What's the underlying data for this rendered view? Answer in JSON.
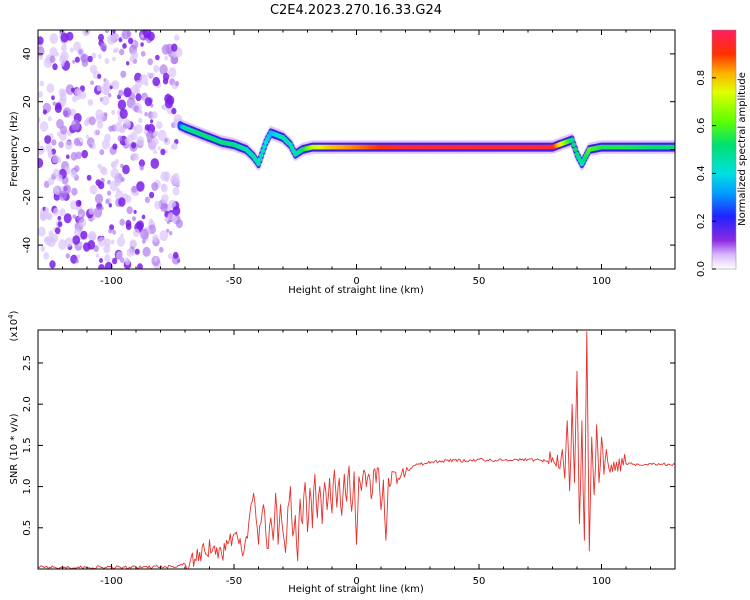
{
  "title": "C2E4.2023.270.16.33.G24",
  "colorbar": {
    "label": "Normalized spectral amplitude",
    "ticks": [
      "0.0",
      "0.2",
      "0.4",
      "0.6",
      "0.8"
    ],
    "tick_values": [
      0.0,
      0.2,
      0.4,
      0.6,
      0.8
    ],
    "range": [
      0,
      1
    ]
  },
  "chart_data": [
    {
      "type": "heatmap",
      "title": "",
      "xlabel": "Height of straight line (km)",
      "ylabel": "Frequency (Hz)",
      "xlim": [
        -130,
        130
      ],
      "ylim": [
        -50,
        50
      ],
      "xticks": [
        "-100",
        "-50",
        "0",
        "50",
        "100"
      ],
      "xtick_values": [
        -100,
        -50,
        0,
        50,
        100
      ],
      "yticks": [
        "-40",
        "-20",
        "0",
        "20",
        "40"
      ],
      "ytick_values": [
        -40,
        -20,
        0,
        20,
        40
      ],
      "noise_region": {
        "x_from": -130,
        "x_to": -72,
        "amplitude_range": [
          0.0,
          0.1
        ]
      },
      "ridge_points": [
        {
          "x": -72,
          "f": 10,
          "a": 0.25
        },
        {
          "x": -70,
          "f": 9,
          "a": 0.45
        },
        {
          "x": -65,
          "f": 7,
          "a": 0.5
        },
        {
          "x": -60,
          "f": 5,
          "a": 0.5
        },
        {
          "x": -55,
          "f": 3,
          "a": 0.5
        },
        {
          "x": -50,
          "f": 2,
          "a": 0.5
        },
        {
          "x": -45,
          "f": 0,
          "a": 0.45
        },
        {
          "x": -42,
          "f": -3,
          "a": 0.45
        },
        {
          "x": -40,
          "f": -6,
          "a": 0.45
        },
        {
          "x": -37,
          "f": 3,
          "a": 0.4
        },
        {
          "x": -35,
          "f": 7,
          "a": 0.35
        },
        {
          "x": -30,
          "f": 5,
          "a": 0.45
        },
        {
          "x": -27,
          "f": 2,
          "a": 0.45
        },
        {
          "x": -25,
          "f": -2,
          "a": 0.45
        },
        {
          "x": -22,
          "f": 0,
          "a": 0.5
        },
        {
          "x": -18,
          "f": 1,
          "a": 0.7
        },
        {
          "x": -10,
          "f": 1,
          "a": 0.8
        },
        {
          "x": 0,
          "f": 1,
          "a": 0.85
        },
        {
          "x": 20,
          "f": 1,
          "a": 0.95
        },
        {
          "x": 50,
          "f": 1,
          "a": 0.95
        },
        {
          "x": 80,
          "f": 1,
          "a": 0.95
        },
        {
          "x": 88,
          "f": 4,
          "a": 0.5
        },
        {
          "x": 90,
          "f": -2,
          "a": 0.5
        },
        {
          "x": 92,
          "f": -6,
          "a": 0.45
        },
        {
          "x": 95,
          "f": 0,
          "a": 0.6
        },
        {
          "x": 100,
          "f": 1,
          "a": 0.55
        },
        {
          "x": 110,
          "f": 1,
          "a": 0.55
        },
        {
          "x": 130,
          "f": 1,
          "a": 0.5
        }
      ]
    },
    {
      "type": "line",
      "title": "",
      "xlabel": "Height of straight line (km)",
      "ylabel": "SNR (10 * v/v)",
      "y_scale_label": "(x10^4)",
      "xlim": [
        -130,
        130
      ],
      "ylim": [
        0,
        2.9
      ],
      "xticks": [
        "-100",
        "-50",
        "0",
        "50",
        "100"
      ],
      "xtick_values": [
        -100,
        -50,
        0,
        50,
        100
      ],
      "yticks": [
        "0.5",
        "1.0",
        "1.5",
        "2.0",
        "2.5"
      ],
      "ytick_values": [
        0.5,
        1.0,
        1.5,
        2.0,
        2.5
      ],
      "series": [
        {
          "color": "#e8302c",
          "x": [
            -130,
            -110,
            -90,
            -75,
            -70,
            -66,
            -62,
            -58,
            -55,
            -52,
            -49,
            -46,
            -44,
            -42,
            -40,
            -39,
            -38,
            -37,
            -36,
            -35,
            -34,
            -33,
            -32,
            -31,
            -30,
            -29,
            -28,
            -27,
            -26,
            -25,
            -24,
            -23,
            -22,
            -21,
            -20,
            -19,
            -18,
            -17,
            -16,
            -15,
            -14,
            -13,
            -12,
            -11,
            -10,
            -9,
            -8,
            -7,
            -6,
            -5,
            -4,
            -3,
            -2,
            -1,
            0,
            1,
            2,
            3,
            4,
            5,
            6,
            7,
            8,
            9,
            10,
            11,
            12,
            13,
            14,
            15,
            17,
            19,
            21,
            23,
            25,
            28,
            31,
            35,
            40,
            45,
            50,
            55,
            60,
            65,
            70,
            75,
            78,
            80,
            81,
            82,
            83,
            84,
            85,
            86,
            87,
            88,
            89,
            90,
            91,
            92,
            93,
            94,
            95,
            96,
            97,
            98,
            99,
            100,
            101,
            102,
            103,
            105,
            110,
            115,
            120,
            125,
            130
          ],
          "y": [
            0.02,
            0.02,
            0.02,
            0.03,
            0.06,
            0.12,
            0.22,
            0.28,
            0.18,
            0.34,
            0.45,
            0.2,
            0.55,
            0.92,
            0.3,
            0.55,
            0.78,
            0.42,
            0.25,
            0.62,
            0.35,
            0.92,
            0.3,
            0.78,
            0.45,
            0.2,
            0.75,
            1.0,
            0.4,
            0.65,
            0.1,
            0.85,
            0.55,
            1.05,
            0.45,
            0.98,
            0.5,
            1.15,
            0.62,
            1.0,
            0.55,
            1.05,
            0.72,
            1.1,
            0.68,
            1.2,
            0.75,
            1.1,
            0.65,
            1.15,
            0.82,
            1.25,
            0.7,
            1.18,
            0.3,
            1.12,
            0.95,
            1.2,
            1.0,
            1.15,
            0.85,
            1.2,
            1.05,
            1.22,
            0.72,
            1.08,
            0.35,
            1.1,
            1.02,
            1.18,
            1.1,
            1.22,
            1.2,
            1.25,
            1.27,
            1.28,
            1.3,
            1.31,
            1.32,
            1.31,
            1.33,
            1.32,
            1.32,
            1.33,
            1.33,
            1.32,
            1.31,
            1.35,
            1.28,
            1.38,
            1.22,
            1.45,
            1.1,
            1.8,
            0.95,
            2.0,
            1.05,
            2.4,
            0.55,
            1.8,
            0.35,
            2.88,
            0.22,
            1.6,
            0.9,
            1.75,
            1.05,
            1.6,
            1.15,
            1.45,
            1.22,
            1.3,
            1.28,
            1.27,
            1.28,
            1.27,
            1.27
          ]
        }
      ]
    }
  ]
}
